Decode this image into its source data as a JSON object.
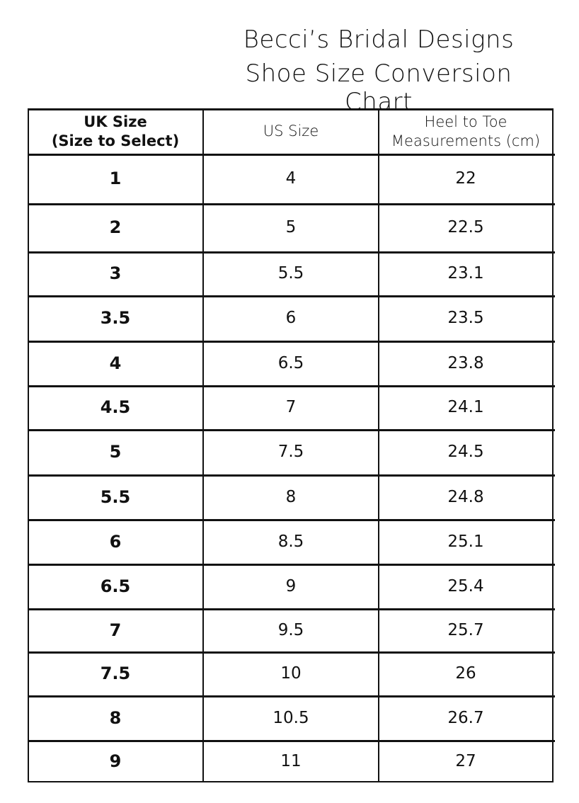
{
  "title": {
    "line1": "Becci’s Bridal Designs",
    "line2": "Shoe Size Conversion Chart"
  },
  "table": {
    "headers": [
      {
        "line1": "UK Size",
        "line2": "(Size to Select)"
      },
      {
        "line1": "US Size",
        "line2": ""
      },
      {
        "line1": "Heel to Toe",
        "line2": "Measurements (cm)"
      }
    ],
    "rows": [
      [
        "1",
        "4",
        "22"
      ],
      [
        "2",
        "5",
        "22.5"
      ],
      [
        "3",
        "5.5",
        "23.1"
      ],
      [
        "3.5",
        "6",
        "23.5"
      ],
      [
        "4",
        "6.5",
        "23.8"
      ],
      [
        "4.5",
        "7",
        "24.1"
      ],
      [
        "5",
        "7.5",
        "24.5"
      ],
      [
        "5.5",
        "8",
        "24.8"
      ],
      [
        "6",
        "8.5",
        "25.1"
      ],
      [
        "6.5",
        "9",
        "25.4"
      ],
      [
        "7",
        "9.5",
        "25.7"
      ],
      [
        "7.5",
        "10",
        "26"
      ],
      [
        "8",
        "10.5",
        "26.7"
      ],
      [
        "9",
        "11",
        "27"
      ]
    ]
  }
}
